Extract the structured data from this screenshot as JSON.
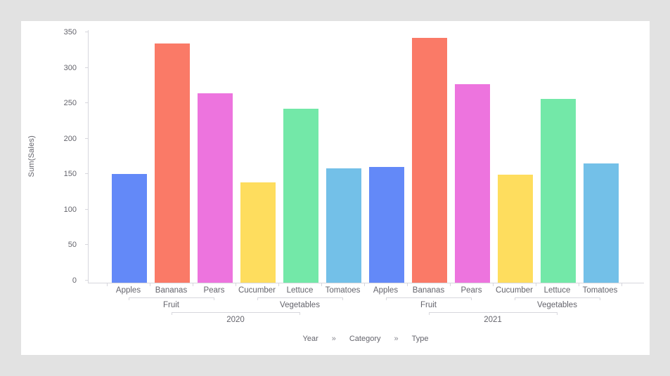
{
  "chart_data": {
    "type": "bar",
    "title": "",
    "ylabel": "Sum(Sales)",
    "xlabel": "",
    "ylim": [
      0,
      350
    ],
    "yticks": [
      0,
      50,
      100,
      150,
      200,
      250,
      300,
      350
    ],
    "grid": false,
    "legend": "none",
    "hierarchy_fields": [
      "Year",
      "Category",
      "Type"
    ],
    "hierarchy_separator": "»",
    "type_colors": {
      "Apples": "#6389f8",
      "Bananas": "#fa7a67",
      "Pears": "#ed74de",
      "Cucumber": "#fedd5e",
      "Lettuce": "#73e8a8",
      "Tomatoes": "#73c0e8"
    },
    "years": [
      {
        "label": "2020",
        "categories": [
          {
            "label": "Fruit",
            "types": [
              {
                "label": "Apples",
                "value": 153
              },
              {
                "label": "Bananas",
                "value": 337
              },
              {
                "label": "Pears",
                "value": 267
              }
            ]
          },
          {
            "label": "Vegetables",
            "types": [
              {
                "label": "Cucumber",
                "value": 141
              },
              {
                "label": "Lettuce",
                "value": 245
              },
              {
                "label": "Tomatoes",
                "value": 161
              }
            ]
          }
        ]
      },
      {
        "label": "2021",
        "categories": [
          {
            "label": "Fruit",
            "types": [
              {
                "label": "Apples",
                "value": 163
              },
              {
                "label": "Bananas",
                "value": 345
              },
              {
                "label": "Pears",
                "value": 280
              }
            ]
          },
          {
            "label": "Vegetables",
            "types": [
              {
                "label": "Cucumber",
                "value": 152
              },
              {
                "label": "Lettuce",
                "value": 259
              },
              {
                "label": "Tomatoes",
                "value": 168
              }
            ]
          }
        ]
      }
    ],
    "axis_colors": {
      "line": "#d7d7dd",
      "text": "#64646c"
    },
    "background": {
      "page": "#e2e2e2",
      "card": "#ffffff"
    }
  }
}
